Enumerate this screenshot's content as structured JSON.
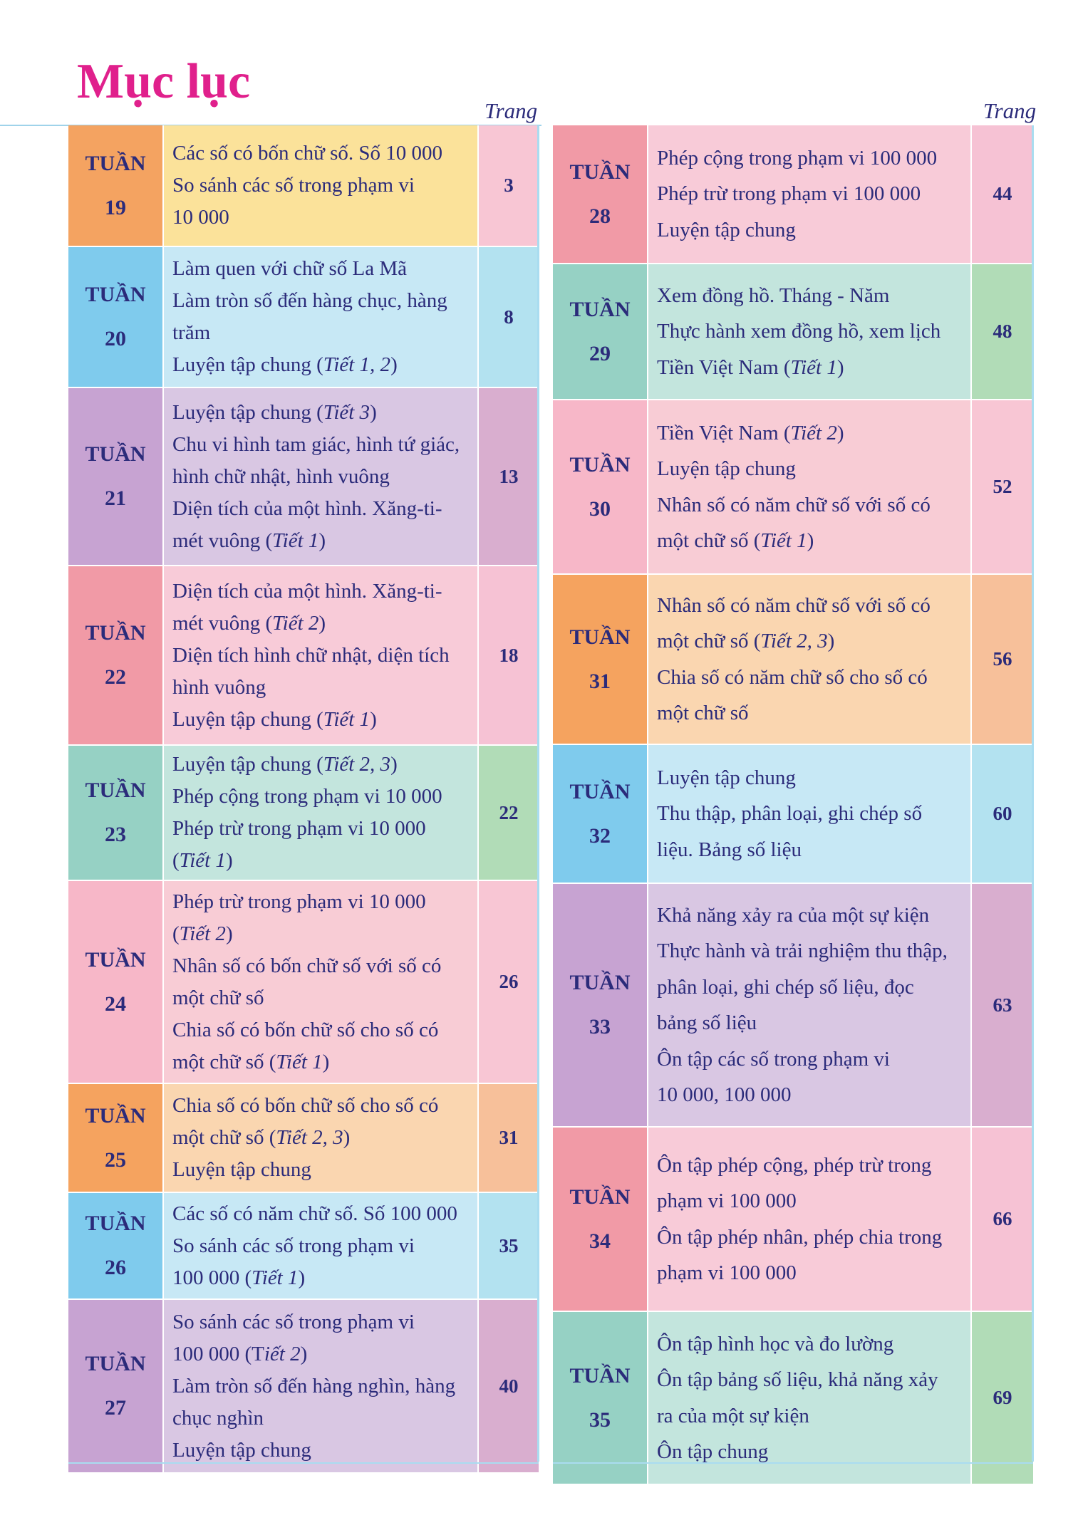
{
  "title": "Mục lục",
  "page_column_label": "Trang",
  "week_word": "TUẦN",
  "left_rows": [
    {
      "week": "19",
      "page": "3",
      "colors": [
        "#f4a361",
        "#fbe29a",
        "#f8c6d4"
      ],
      "lines": [
        [
          {
            "t": "Các số có bốn chữ số. Số 10 000"
          }
        ],
        [
          {
            "t": "So sánh các số trong phạm vi"
          }
        ],
        [
          {
            "t": "10 000"
          }
        ]
      ]
    },
    {
      "week": "20",
      "page": "8",
      "colors": [
        "#7fcbed",
        "#c7e8f5",
        "#b3e2f0"
      ],
      "lines": [
        [
          {
            "t": "Làm quen với chữ số La Mã"
          }
        ],
        [
          {
            "t": "Làm tròn số đến hàng chục, hàng"
          }
        ],
        [
          {
            "t": "trăm"
          }
        ],
        [
          {
            "t": "Luyện tập chung ("
          },
          {
            "t": "Tiết 1, 2",
            "i": true
          },
          {
            "t": ")"
          }
        ]
      ]
    },
    {
      "week": "21",
      "page": "13",
      "colors": [
        "#c7a3d2",
        "#d9c7e3",
        "#d9aecf"
      ],
      "lines": [
        [
          {
            "t": "Luyện tập chung ("
          },
          {
            "t": "Tiết 3",
            "i": true
          },
          {
            "t": ")"
          }
        ],
        [
          {
            "t": "Chu  vi hình tam giác, hình tứ giác,"
          }
        ],
        [
          {
            "t": "hình chữ nhật, hình vuông"
          }
        ],
        [
          {
            "t": "Diện tích của một hình. Xăng-ti-"
          }
        ],
        [
          {
            "t": "mét vuông ("
          },
          {
            "t": "Tiết 1",
            "i": true
          },
          {
            "t": ")"
          }
        ]
      ]
    },
    {
      "week": "22",
      "page": "18",
      "colors": [
        "#f19aa6",
        "#f8cbd8",
        "#f6c2d4"
      ],
      "lines": [
        [
          {
            "t": "Diện tích của một hình. Xăng-ti-"
          }
        ],
        [
          {
            "t": "mét vuông ("
          },
          {
            "t": "Tiết 2",
            "i": true
          },
          {
            "t": ")"
          }
        ],
        [
          {
            "t": "Diện tích hình chữ nhật, diện tích"
          }
        ],
        [
          {
            "t": "hình vuông"
          }
        ],
        [
          {
            "t": "Luyện tập chung ("
          },
          {
            "t": "Tiết 1",
            "i": true
          },
          {
            "t": ")"
          }
        ]
      ]
    },
    {
      "week": "23",
      "page": "22",
      "colors": [
        "#96d1c4",
        "#c3e5dd",
        "#b1dcb7"
      ],
      "lines": [
        [
          {
            "t": "Luyện tập chung ("
          },
          {
            "t": "Tiết 2, 3",
            "i": true
          },
          {
            "t": ")"
          }
        ],
        [
          {
            "t": "Phép cộng trong phạm vi 10 000"
          }
        ],
        [
          {
            "t": "Phép trừ trong phạm vi 10 000"
          }
        ],
        [
          {
            "t": "("
          },
          {
            "t": "Tiết 1",
            "i": true
          },
          {
            "t": ")"
          }
        ]
      ]
    },
    {
      "week": "24",
      "page": "26",
      "colors": [
        "#f7b7c8",
        "#f8ccd5",
        "#f8c6d4"
      ],
      "lines": [
        [
          {
            "t": "Phép trừ trong phạm vi 10 000"
          }
        ],
        [
          {
            "t": "("
          },
          {
            "t": "Tiết 2",
            "i": true
          },
          {
            "t": ")"
          }
        ],
        [
          {
            "t": "Nhân số có bốn chữ số với số có"
          }
        ],
        [
          {
            "t": "một chữ số"
          }
        ],
        [
          {
            "t": "Chia số có bốn chữ số cho số có"
          }
        ],
        [
          {
            "t": "một chữ số ("
          },
          {
            "t": "Tiết 1",
            "i": true
          },
          {
            "t": ")"
          }
        ]
      ]
    },
    {
      "week": "25",
      "page": "31",
      "colors": [
        "#f5a35f",
        "#fad6b0",
        "#f7c09a"
      ],
      "lines": [
        [
          {
            "t": "Chia số có bốn chữ số cho số có"
          }
        ],
        [
          {
            "t": "một chữ số  ("
          },
          {
            "t": "Tiết 2, 3",
            "i": true
          },
          {
            "t": ")"
          }
        ],
        [
          {
            "t": "Luyện tập chung"
          }
        ]
      ]
    },
    {
      "week": "26",
      "page": "35",
      "colors": [
        "#7fcbed",
        "#c7e8f5",
        "#b3e2f0"
      ],
      "lines": [
        [
          {
            "t": "Các số có năm chữ số. Số 100 000"
          }
        ],
        [
          {
            "t": "So sánh các số trong phạm vi"
          }
        ],
        [
          {
            "t": "100 000 ("
          },
          {
            "t": "Tiết 1",
            "i": true
          },
          {
            "t": ")"
          }
        ]
      ]
    },
    {
      "week": "27",
      "page": "40",
      "colors": [
        "#c7a3d2",
        "#d9c7e3",
        "#d9aecf"
      ],
      "lines": [
        [
          {
            "t": "So sánh các số trong phạm vi"
          }
        ],
        [
          {
            "t": "100 000 (T"
          },
          {
            "t": "iết 2",
            "i": true
          },
          {
            "t": ")"
          }
        ],
        [
          {
            "t": "Làm tròn số đến hàng nghìn, hàng"
          }
        ],
        [
          {
            "t": "chục nghìn"
          }
        ],
        [
          {
            "t": "Luyện tập chung"
          }
        ]
      ]
    }
  ],
  "right_rows": [
    {
      "week": "28",
      "page": "44",
      "colors": [
        "#f19aa6",
        "#f8cbd8",
        "#f6c2d4"
      ],
      "lines": [
        [
          {
            "t": "Phép cộng trong phạm vi 100 000"
          }
        ],
        [
          {
            "t": "Phép trừ trong phạm vi 100 000"
          }
        ],
        [
          {
            "t": "Luyện tập chung"
          }
        ]
      ]
    },
    {
      "week": "29",
      "page": "48",
      "colors": [
        "#96d1c4",
        "#c3e5dd",
        "#b1dcb7"
      ],
      "lines": [
        [
          {
            "t": "Xem đồng hồ. Tháng - Năm"
          }
        ],
        [
          {
            "t": "Thực hành xem đồng hồ, xem lịch"
          }
        ],
        [
          {
            "t": "Tiền Việt Nam ("
          },
          {
            "t": "Tiết 1",
            "i": true
          },
          {
            "t": ")"
          }
        ]
      ]
    },
    {
      "week": "30",
      "page": "52",
      "colors": [
        "#f7b7c8",
        "#f8ccd5",
        "#f8c6d4"
      ],
      "lines": [
        [
          {
            "t": "Tiền Việt Nam ("
          },
          {
            "t": "Tiết 2",
            "i": true
          },
          {
            "t": ")"
          }
        ],
        [
          {
            "t": "Luyện tập chung"
          }
        ],
        [
          {
            "t": "Nhân số có năm chữ số với số có"
          }
        ],
        [
          {
            "t": "một chữ số ("
          },
          {
            "t": "Tiết 1",
            "i": true
          },
          {
            "t": ")"
          }
        ]
      ]
    },
    {
      "week": "31",
      "page": "56",
      "colors": [
        "#f5a35f",
        "#fad6b0",
        "#f7c09a"
      ],
      "lines": [
        [
          {
            "t": "Nhân số có năm chữ số với số có"
          }
        ],
        [
          {
            "t": "một chữ số ("
          },
          {
            "t": "Tiết 2, 3",
            "i": true
          },
          {
            "t": ")"
          }
        ],
        [
          {
            "t": "Chia số có năm chữ số cho số có"
          }
        ],
        [
          {
            "t": "một chữ số"
          }
        ]
      ]
    },
    {
      "week": "32",
      "page": "60",
      "colors": [
        "#7fcbed",
        "#c7e8f5",
        "#b3e2f0"
      ],
      "lines": [
        [
          {
            "t": "Luyện tập chung"
          }
        ],
        [
          {
            "t": "Thu thập, phân loại, ghi chép số"
          }
        ],
        [
          {
            "t": "liệu. Bảng số liệu"
          }
        ]
      ]
    },
    {
      "week": "33",
      "page": "63",
      "colors": [
        "#c7a3d2",
        "#d9c7e3",
        "#d9aecf"
      ],
      "lines": [
        [
          {
            "t": "Khả năng xảy ra của một sự kiện"
          }
        ],
        [
          {
            "t": "Thực hành và trải nghiệm thu thập,"
          }
        ],
        [
          {
            "t": "phân loại, ghi chép số liệu, đọc"
          }
        ],
        [
          {
            "t": "bảng số liệu"
          }
        ],
        [
          {
            "t": "Ôn tập các số trong phạm vi"
          }
        ],
        [
          {
            "t": "10 000, 100 000"
          }
        ]
      ]
    },
    {
      "week": "34",
      "page": "66",
      "colors": [
        "#f19aa6",
        "#f8cbd8",
        "#f6c2d4"
      ],
      "lines": [
        [
          {
            "t": "Ôn tập phép cộng, phép trừ trong"
          }
        ],
        [
          {
            "t": "phạm vi 100 000"
          }
        ],
        [
          {
            "t": "Ôn tập phép nhân, phép chia trong"
          }
        ],
        [
          {
            "t": "phạm vi 100 000"
          }
        ]
      ]
    },
    {
      "week": "35",
      "page": "69",
      "colors": [
        "#96d1c4",
        "#c3e5dd",
        "#b1dcb7"
      ],
      "lines": [
        [
          {
            "t": "Ôn tập hình học và đo lường"
          }
        ],
        [
          {
            "t": "Ôn tập bảng số liệu, khả năng xảy"
          }
        ],
        [
          {
            "t": "ra của một sự kiện"
          }
        ],
        [
          {
            "t": "Ôn tập chung"
          }
        ]
      ]
    }
  ]
}
